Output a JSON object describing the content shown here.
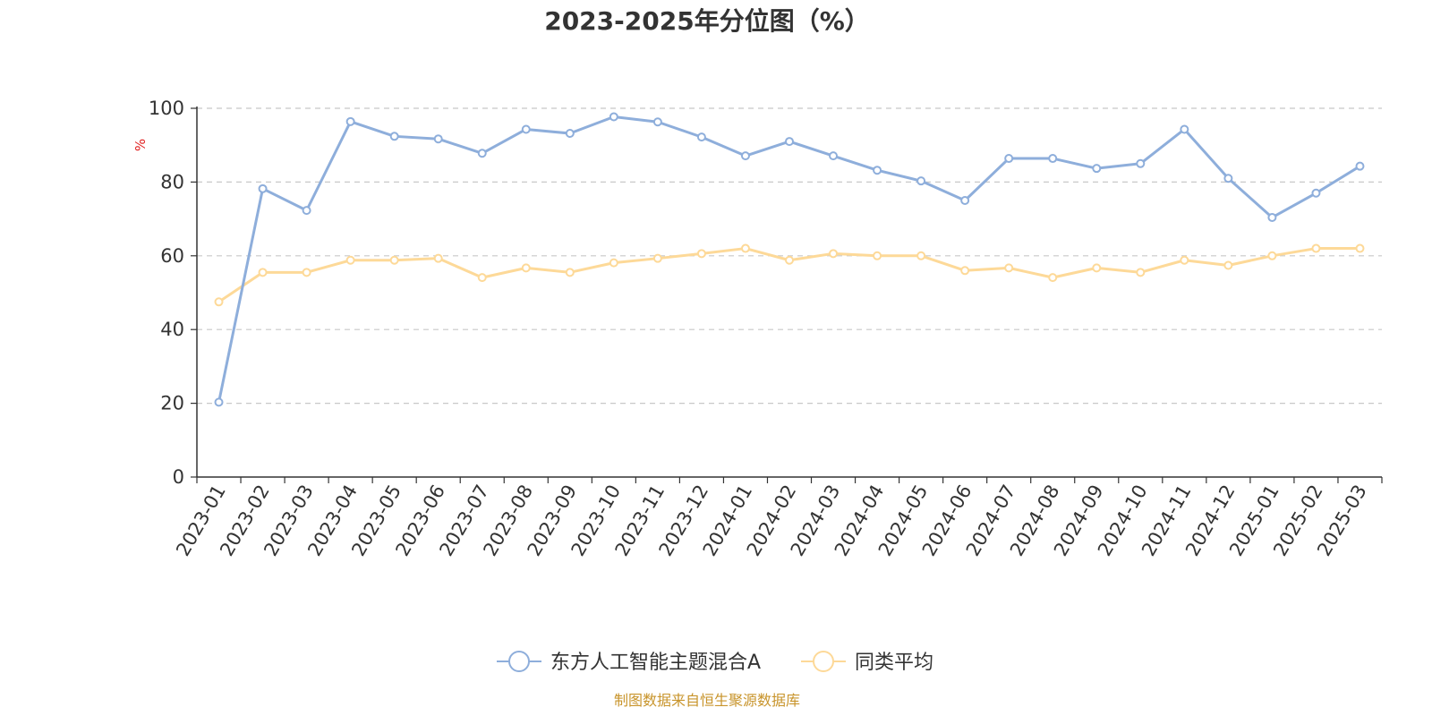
{
  "chart_data": {
    "type": "line",
    "title": "2023-2025年分位图（%）",
    "ylabel": "%",
    "ylim": [
      0,
      100
    ],
    "yticks": [
      0,
      20,
      40,
      60,
      80,
      100
    ],
    "grid": true,
    "legend_position": "bottom-center",
    "categories": [
      "2023-01",
      "2023-02",
      "2023-03",
      "2023-04",
      "2023-05",
      "2023-06",
      "2023-07",
      "2023-08",
      "2023-09",
      "2023-10",
      "2023-11",
      "2023-12",
      "2024-01",
      "2024-02",
      "2024-03",
      "2024-04",
      "2024-05",
      "2024-06",
      "2024-07",
      "2024-08",
      "2024-09",
      "2024-10",
      "2024-11",
      "2024-12",
      "2025-01",
      "2025-02",
      "2025-03"
    ],
    "series": [
      {
        "name": "东方人工智能主题混合A",
        "color": "#8eaedb",
        "values": [
          20.3,
          78.2,
          72.3,
          96.4,
          92.4,
          91.7,
          87.8,
          94.3,
          93.2,
          97.7,
          96.3,
          92.2,
          87.1,
          91.0,
          87.1,
          83.2,
          80.3,
          75.0,
          86.4,
          86.4,
          83.7,
          85.0,
          94.3,
          81.0,
          70.4,
          77.0,
          84.3
        ]
      },
      {
        "name": "同类平均",
        "color": "#fdd998",
        "values": [
          47.5,
          55.5,
          55.5,
          58.8,
          58.8,
          59.3,
          54.1,
          56.7,
          55.5,
          58.1,
          59.3,
          60.6,
          62.0,
          58.8,
          60.6,
          60.0,
          60.0,
          56.0,
          56.7,
          54.1,
          56.7,
          55.5,
          58.8,
          57.4,
          60.0,
          62.0,
          62.0
        ]
      }
    ]
  },
  "source": {
    "text": "制图数据来自恒生聚源数据库",
    "color": "#c8942b"
  },
  "ylabel_color": "#e02020"
}
